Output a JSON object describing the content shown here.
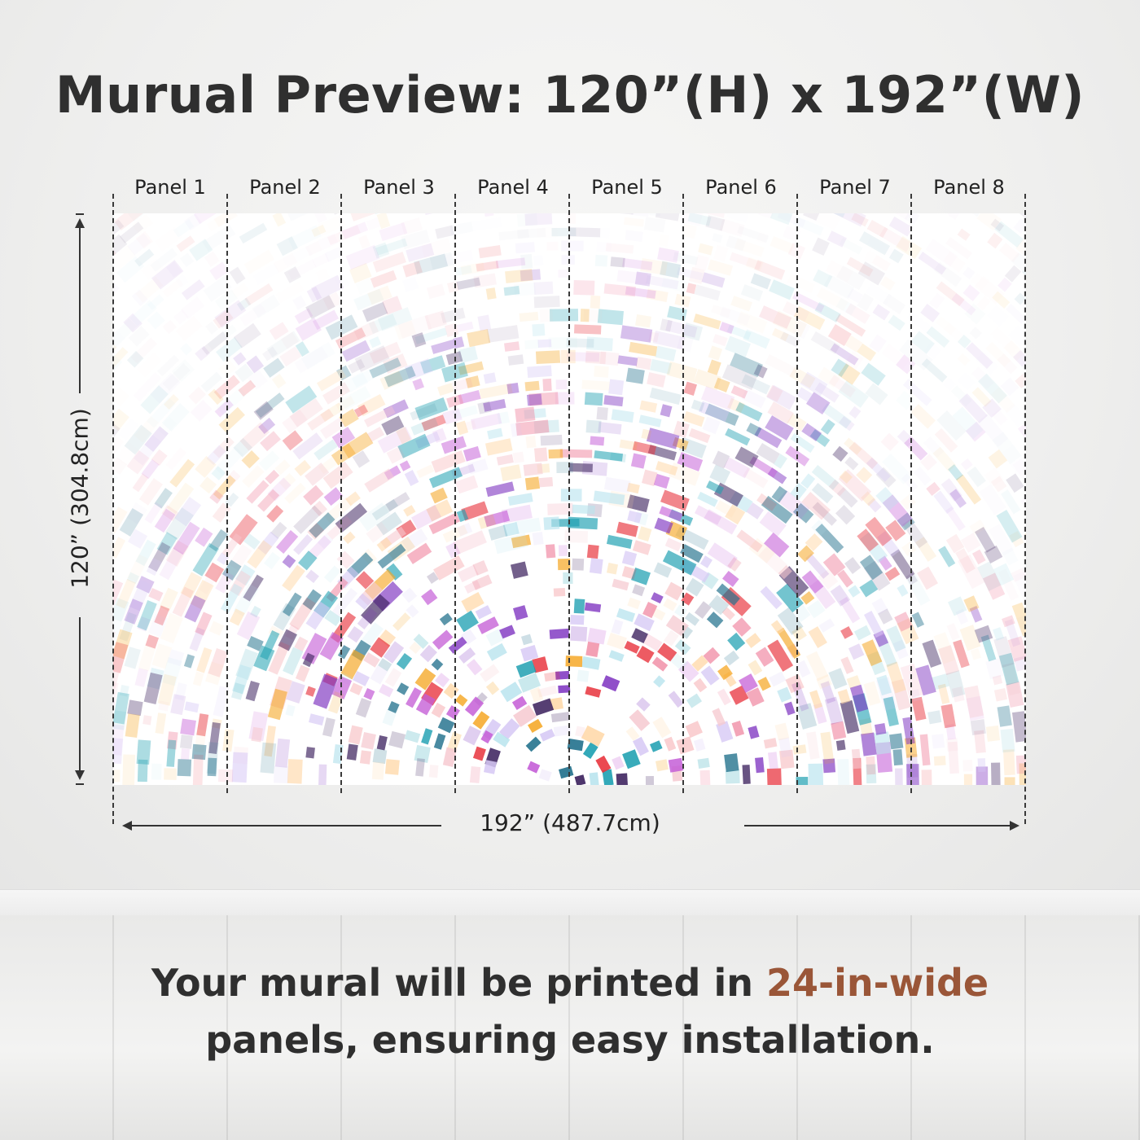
{
  "title": "Murual Preview: 120”(H) x 192”(W)",
  "panels": [
    "Panel 1",
    "Panel 2",
    "Panel 3",
    "Panel 4",
    "Panel 5",
    "Panel 6",
    "Panel 7",
    "Panel 8"
  ],
  "height_dimension": "120” (304.8cm)",
  "width_dimension": "192” (487.7cm)",
  "caption": {
    "line1_before": "Your mural will be printed in ",
    "line1_highlight": "24-in-wide",
    "line2": "panels, ensuring easy installation."
  },
  "colors": {
    "accent": "#9a5638",
    "mural_palette": [
      "#7b2fbf",
      "#e8323c",
      "#1a9eb0",
      "#f5a623",
      "#f6c9d0",
      "#3a1f5c",
      "#b9e4ee",
      "#f08aa3",
      "#c45cd6",
      "#1f6f8b",
      "#ffd8a8",
      "#d6c8f5"
    ]
  }
}
